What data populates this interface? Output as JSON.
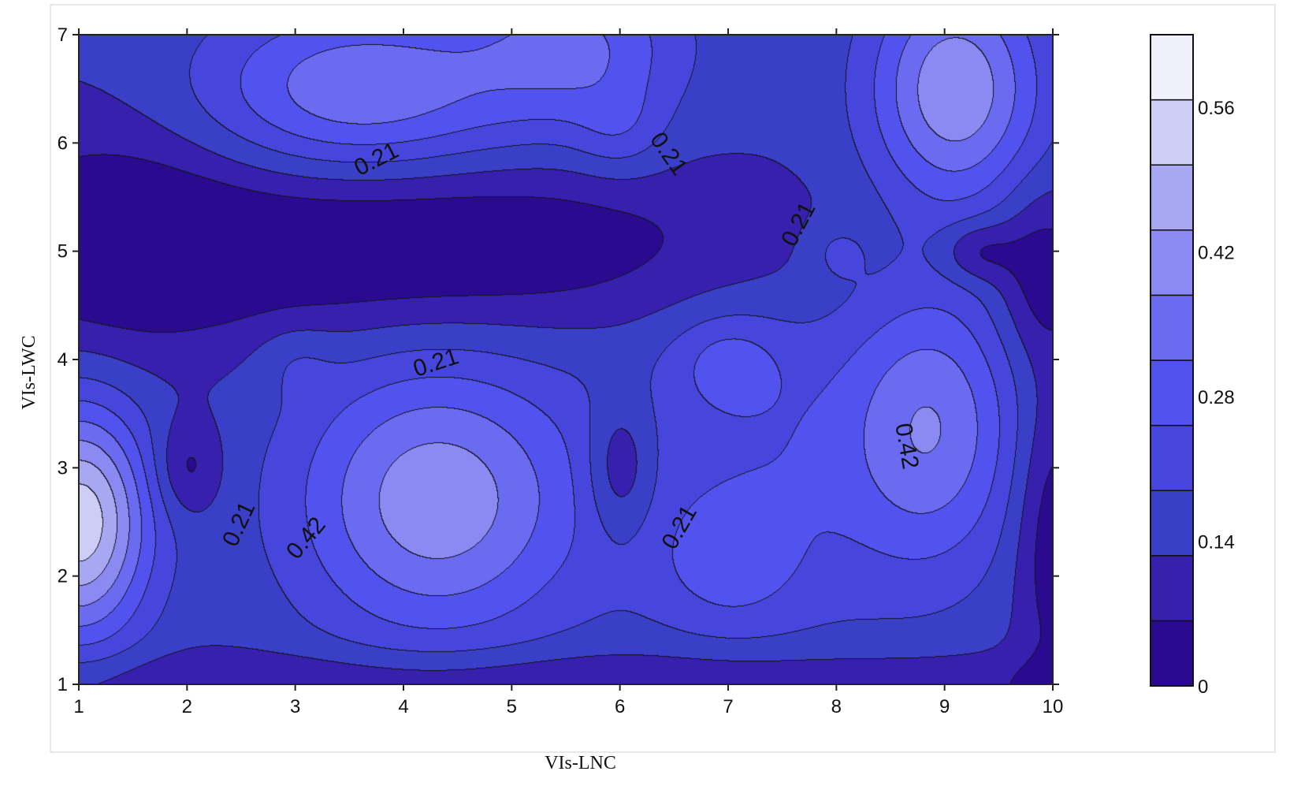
{
  "chart_data": {
    "type": "heatmap",
    "subtype": "filled-contour",
    "title": "",
    "xlabel": "VIs-LNC",
    "ylabel": "VIs-LWC",
    "xlim": [
      1,
      10
    ],
    "ylim": [
      1,
      7
    ],
    "x_ticks": [
      "1",
      "2",
      "3",
      "4",
      "5",
      "6",
      "7",
      "8",
      "9",
      "10"
    ],
    "y_ticks": [
      "1",
      "2",
      "3",
      "4",
      "5",
      "6",
      "7"
    ],
    "contour_levels": [
      0,
      0.07,
      0.14,
      0.21,
      0.28,
      0.35,
      0.42,
      0.49,
      0.56,
      0.63
    ],
    "colorbar": {
      "range": [
        0,
        0.63
      ],
      "labeled_ticks": [
        {
          "value": 0,
          "label": "0"
        },
        {
          "value": 0.14,
          "label": "0.14"
        },
        {
          "value": 0.28,
          "label": "0.28"
        },
        {
          "value": 0.42,
          "label": "0.42"
        },
        {
          "value": 0.56,
          "label": "0.56"
        }
      ],
      "colors": [
        "#2a0a8e",
        "#3620ad",
        "#3a3fc8",
        "#4646dd",
        "#5252ee",
        "#6b6bf2",
        "#8a8af2",
        "#a8a8f2",
        "#cdcdf5",
        "#f0f0fb"
      ],
      "placement": "right"
    },
    "contour_labels": [
      {
        "text": "0.21",
        "x": 3.75,
        "y": 5.85,
        "angle": -27
      },
      {
        "text": "0.21",
        "x": 6.45,
        "y": 5.9,
        "angle": 55
      },
      {
        "text": "0.21",
        "x": 7.65,
        "y": 5.25,
        "angle": -62
      },
      {
        "text": "0.21",
        "x": 4.3,
        "y": 3.97,
        "angle": -18
      },
      {
        "text": "0.21",
        "x": 2.48,
        "y": 2.48,
        "angle": -65
      },
      {
        "text": "0.42",
        "x": 3.1,
        "y": 2.35,
        "angle": -50
      },
      {
        "text": "0.21",
        "x": 6.55,
        "y": 2.45,
        "angle": -60
      },
      {
        "text": "0.42",
        "x": 8.65,
        "y": 3.2,
        "angle": 80
      }
    ],
    "grid": false,
    "field": {
      "description": "value field V(x,y) sampled as sum of Gaussian components: amp * exp(-((x-cx)^2/(2sx^2) + (y-cy)^2/(2sy^2)))",
      "base": 0.15,
      "components": [
        {
          "cx": 3.6,
          "cy": 6.5,
          "sx": 1.0,
          "sy": 0.55,
          "amp": 0.26
        },
        {
          "cx": 5.6,
          "cy": 6.9,
          "sx": 0.7,
          "sy": 0.55,
          "amp": 0.2
        },
        {
          "cx": 6.0,
          "cy": 6.1,
          "sx": 0.3,
          "sy": 0.3,
          "amp": 0.08
        },
        {
          "cx": 9.1,
          "cy": 6.5,
          "sx": 0.55,
          "sy": 0.75,
          "amp": 0.33
        },
        {
          "cx": 3.9,
          "cy": 5.05,
          "sx": 2.4,
          "sy": 0.55,
          "amp": -0.17
        },
        {
          "cx": 1.3,
          "cy": 5.1,
          "sx": 0.8,
          "sy": 0.8,
          "amp": -0.1
        },
        {
          "cx": 9.3,
          "cy": 5.0,
          "sx": 0.25,
          "sy": 0.2,
          "amp": -0.13
        },
        {
          "cx": 9.9,
          "cy": 4.8,
          "sx": 0.3,
          "sy": 0.55,
          "amp": -0.13
        },
        {
          "cx": 2.0,
          "cy": 3.0,
          "sx": 0.22,
          "sy": 0.32,
          "amp": -0.12
        },
        {
          "cx": 6.0,
          "cy": 3.0,
          "sx": 0.22,
          "sy": 0.45,
          "amp": -0.14
        },
        {
          "cx": 4.3,
          "cy": 2.7,
          "sx": 0.9,
          "sy": 0.9,
          "amp": 0.32
        },
        {
          "cx": 1.0,
          "cy": 2.5,
          "sx": 0.45,
          "sy": 0.75,
          "amp": 0.46
        },
        {
          "cx": 8.9,
          "cy": 3.4,
          "sx": 0.55,
          "sy": 0.9,
          "amp": 0.23
        },
        {
          "cx": 7.4,
          "cy": 3.0,
          "sx": 1.1,
          "sy": 1.2,
          "amp": 0.12
        },
        {
          "cx": 7.0,
          "cy": 2.1,
          "sx": 0.45,
          "sy": 0.4,
          "amp": 0.1
        },
        {
          "cx": 7.0,
          "cy": 4.0,
          "sx": 0.35,
          "sy": 0.3,
          "amp": 0.1
        },
        {
          "cx": 8.0,
          "cy": 5.0,
          "sx": 0.2,
          "sy": 0.2,
          "amp": 0.07
        },
        {
          "cx": 3.0,
          "cy": 4.0,
          "sx": 0.25,
          "sy": 0.25,
          "amp": 0.05
        },
        {
          "cx": 10.0,
          "cy": 2.4,
          "sx": 0.25,
          "sy": 1.0,
          "amp": -0.14
        },
        {
          "cx": 5.5,
          "cy": 1.0,
          "sx": 5.0,
          "sy": 0.22,
          "amp": -0.1
        }
      ]
    }
  }
}
